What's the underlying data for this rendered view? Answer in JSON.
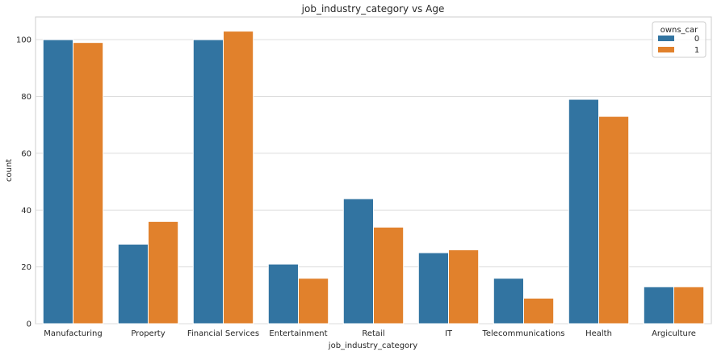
{
  "chart_data": {
    "type": "bar",
    "title": "job_industry_category vs Age",
    "xlabel": "job_industry_category",
    "ylabel": "count",
    "categories": [
      "Manufacturing",
      "Property",
      "Financial Services",
      "Entertainment",
      "Retail",
      "IT",
      "Telecommunications",
      "Health",
      "Argiculture"
    ],
    "series": [
      {
        "name": "0",
        "color": "#3274a1",
        "values": [
          100,
          28,
          100,
          21,
          44,
          25,
          16,
          79,
          13
        ]
      },
      {
        "name": "1",
        "color": "#e1812c",
        "values": [
          99,
          36,
          103,
          16,
          34,
          26,
          9,
          73,
          13
        ]
      }
    ],
    "ylim": [
      0,
      108
    ],
    "yticks": [
      0,
      20,
      40,
      60,
      80,
      100
    ],
    "grid": "horizontal",
    "legend": {
      "title": "owns_car",
      "placement": "top-right"
    }
  }
}
